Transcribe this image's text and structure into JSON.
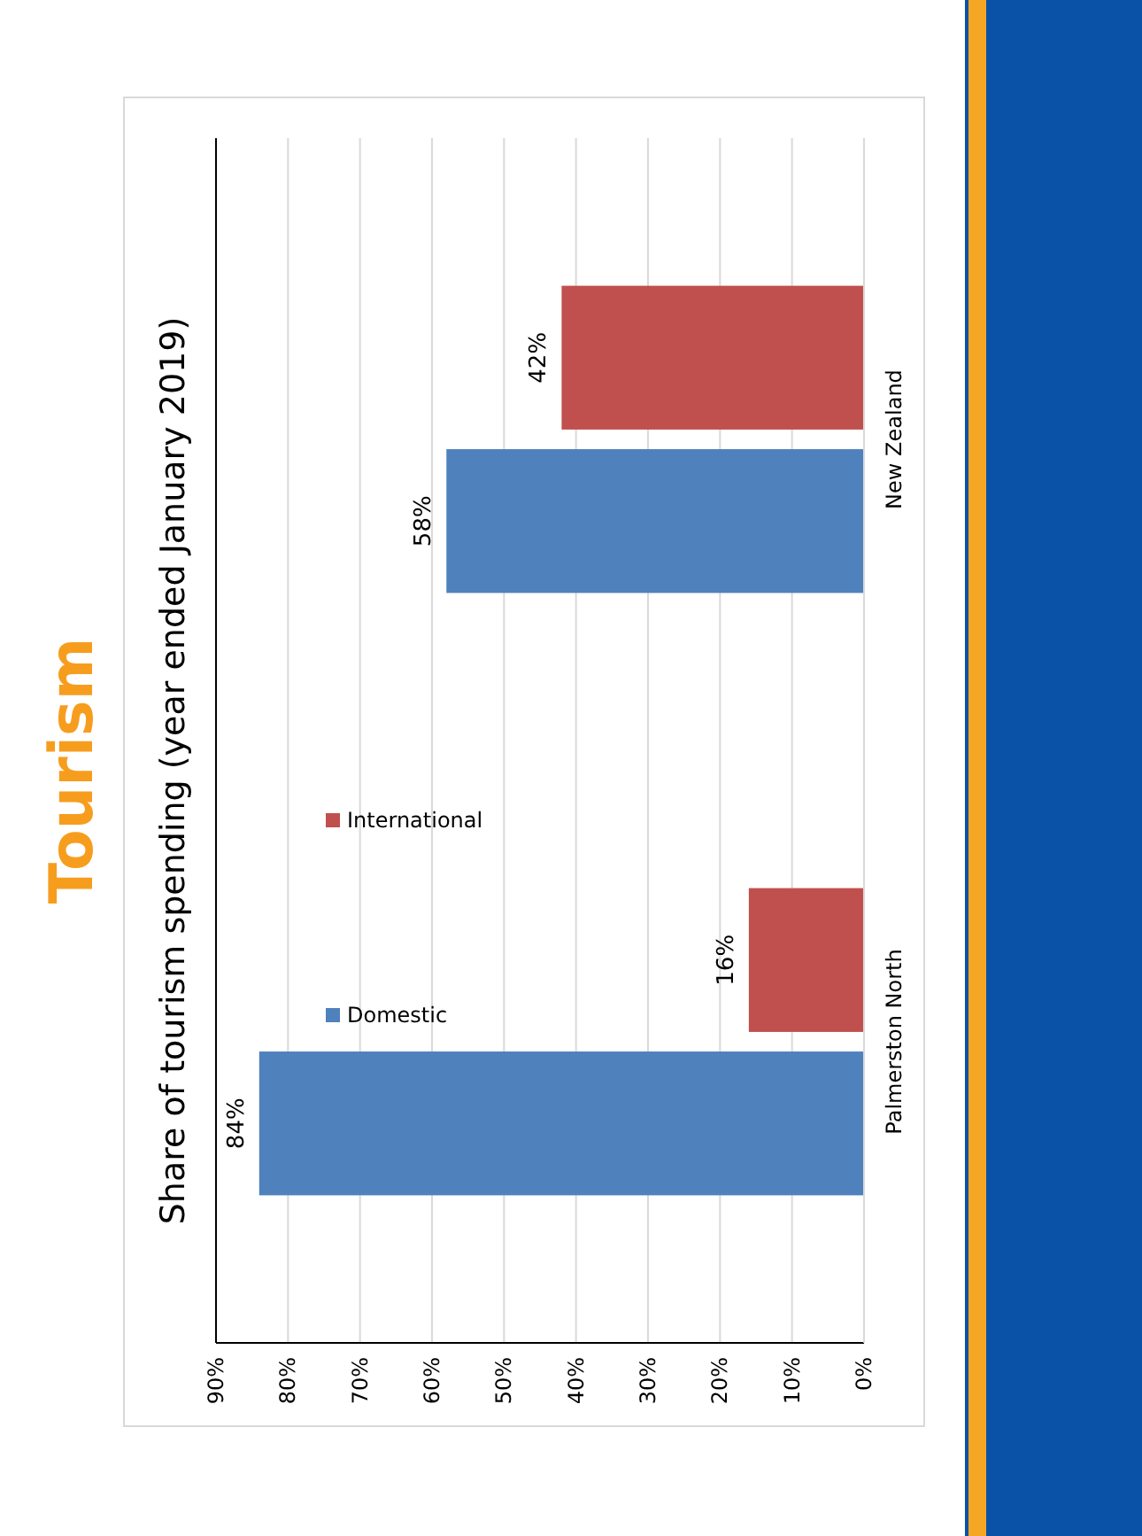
{
  "chart_data": {
    "type": "bar",
    "orientation": "horizontal",
    "title": "Tourism",
    "subtitle": "Share of tourism spending (year ended January 2019)",
    "categories": [
      "New Zealand",
      "Palmerston North"
    ],
    "series": [
      {
        "name": "Domestic",
        "color": "#4f81bd",
        "values": [
          58,
          84
        ],
        "value_labels": [
          "58%",
          "84%"
        ]
      },
      {
        "name": "International",
        "color": "#c0504d",
        "values": [
          42,
          16
        ],
        "value_labels": [
          "42%",
          "16%"
        ]
      }
    ],
    "xlim": [
      90,
      0
    ],
    "xticks": [
      {
        "value": 90,
        "label": "90%"
      },
      {
        "value": 80,
        "label": "80%"
      },
      {
        "value": 70,
        "label": "70%"
      },
      {
        "value": 60,
        "label": "60%"
      },
      {
        "value": 50,
        "label": "50%"
      },
      {
        "value": 40,
        "label": "40%"
      },
      {
        "value": 30,
        "label": "30%"
      },
      {
        "value": 20,
        "label": "20%"
      },
      {
        "value": 10,
        "label": "10%"
      },
      {
        "value": 0,
        "label": "0%"
      }
    ],
    "grid": "x",
    "legend": "left"
  }
}
